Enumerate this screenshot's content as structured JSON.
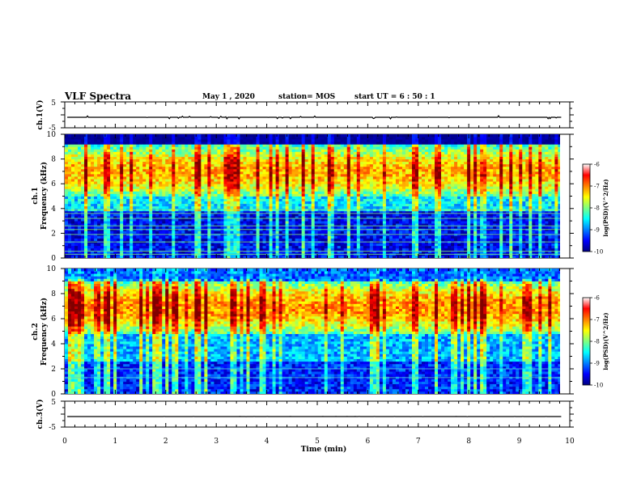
{
  "header": {
    "title": "VLF Spectra",
    "date": "May 1 , 2020",
    "station": "station= MOS",
    "start": "start UT = 6 : 50 : 1"
  },
  "chart_data": [
    {
      "type": "line",
      "panel": "ch1-waveform",
      "ylabel": "ch.1(V)",
      "ylim": [
        -5,
        5
      ],
      "yticks": [
        "5",
        "-5"
      ],
      "xlim": [
        0,
        10
      ],
      "series": [
        {
          "description_level": -1.2
        }
      ]
    },
    {
      "type": "heatmap",
      "panel": "ch1-spectrogram",
      "ylabel": "ch.1\nFrequency (kHz)",
      "ylabel_lines": [
        "ch.1",
        "Frequency (kHz)"
      ],
      "ylim": [
        0,
        10
      ],
      "yticks": [
        "0",
        "2",
        "4",
        "6",
        "8",
        "10"
      ],
      "xlim": [
        0,
        9.83
      ],
      "colorbar": {
        "label": "log(PSD)(V^2/Hz)",
        "ticks": [
          "-6",
          "-7",
          "-8",
          "-9",
          "-10"
        ],
        "range": [
          -10,
          -6
        ]
      }
    },
    {
      "type": "heatmap",
      "panel": "ch2-spectrogram",
      "ylabel_lines": [
        "ch.2",
        "Frequency (kHz)"
      ],
      "ylim": [
        0,
        10
      ],
      "yticks": [
        "0",
        "2",
        "4",
        "6",
        "8",
        "10"
      ],
      "xlim": [
        0,
        9.83
      ],
      "colorbar": {
        "label": "log(PSD)(V^2/Hz)",
        "ticks": [
          "-6",
          "-7",
          "-8",
          "-9",
          "-10"
        ],
        "range": [
          -10,
          -6
        ]
      }
    },
    {
      "type": "line",
      "panel": "ch3-waveform",
      "ylabel": "ch.3(V)",
      "ylim": [
        -5,
        5
      ],
      "yticks": [
        "5",
        "-5"
      ],
      "xlim": [
        0,
        10
      ],
      "xlabel": "Time (min)",
      "xticks": [
        "0",
        "1",
        "2",
        "3",
        "4",
        "5",
        "6",
        "7",
        "8",
        "9",
        "10"
      ]
    }
  ]
}
